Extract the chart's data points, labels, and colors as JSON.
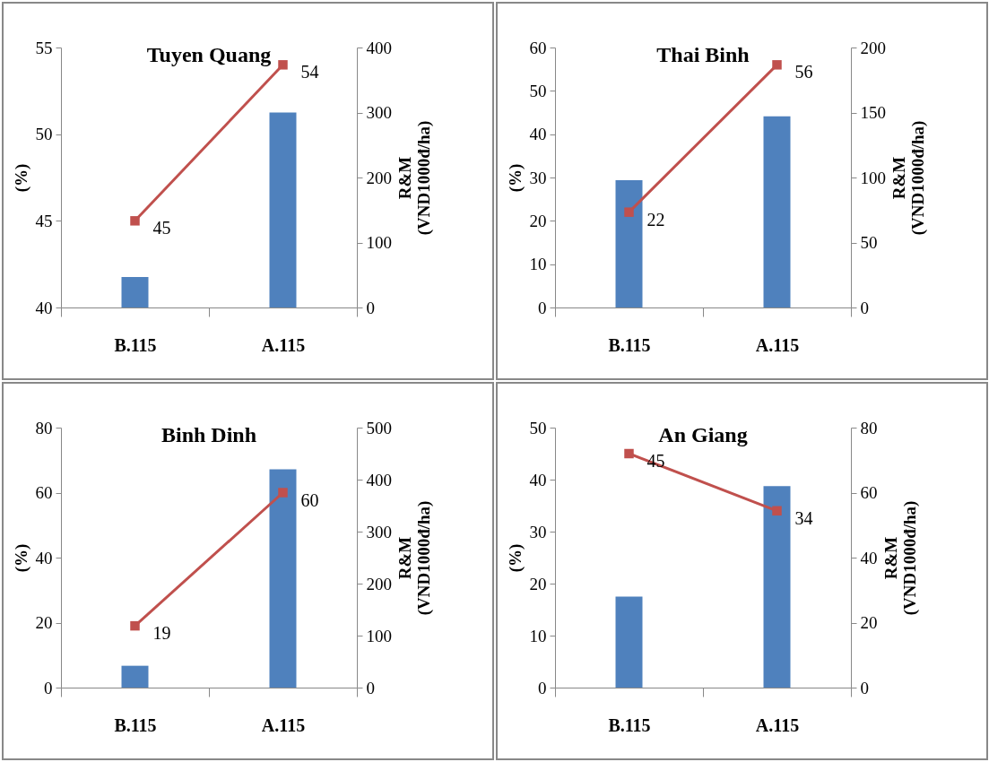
{
  "chart_data": [
    {
      "type": "bar",
      "title": "Tuyen Quang",
      "categories": [
        "B.115",
        "A.115"
      ],
      "ylabel": "(%)",
      "y2label": "R&M\n(VND1000đ/ha)",
      "ylim": [
        40,
        55
      ],
      "yticks": [
        40,
        45,
        50,
        55
      ],
      "y2lim": [
        0,
        400
      ],
      "y2ticks": [
        0,
        100,
        200,
        300,
        400
      ],
      "series": [
        {
          "axis": "y2",
          "color": "#4f81bd",
          "values": [
            47,
            300
          ]
        },
        {
          "type": "line",
          "color": "#c0504d",
          "marker": "square",
          "data_labels": true,
          "values": [
            45,
            54
          ]
        }
      ]
    },
    {
      "type": "bar",
      "title": "Thai Binh",
      "categories": [
        "B.115",
        "A.115"
      ],
      "ylabel": "(%)",
      "y2label": "R&M\n(VND1000đ/ha)",
      "ylim": [
        0,
        60
      ],
      "yticks": [
        0,
        10,
        20,
        30,
        40,
        50,
        60
      ],
      "y2lim": [
        0,
        200
      ],
      "y2ticks": [
        0,
        50,
        100,
        150,
        200
      ],
      "series": [
        {
          "axis": "y2",
          "color": "#4f81bd",
          "values": [
            98,
            147
          ]
        },
        {
          "type": "line",
          "color": "#c0504d",
          "marker": "square",
          "data_labels": true,
          "values": [
            22,
            56
          ]
        }
      ]
    },
    {
      "type": "bar",
      "title": "Binh Dinh",
      "categories": [
        "B.115",
        "A.115"
      ],
      "ylabel": "(%)",
      "y2label": "R&M\n(VND1000đ/ha)",
      "ylim": [
        0,
        80
      ],
      "yticks": [
        0,
        20,
        40,
        60,
        80
      ],
      "y2lim": [
        0,
        500
      ],
      "y2ticks": [
        0,
        100,
        200,
        300,
        400,
        500
      ],
      "series": [
        {
          "axis": "y2",
          "color": "#4f81bd",
          "values": [
            42,
            420
          ]
        },
        {
          "type": "line",
          "color": "#c0504d",
          "marker": "square",
          "data_labels": true,
          "values": [
            19,
            60
          ]
        }
      ]
    },
    {
      "type": "bar",
      "title": "An Giang",
      "categories": [
        "B.115",
        "A.115"
      ],
      "ylabel": "(%)",
      "y2label": "R&M\n(VND1000đ/ha)",
      "ylim": [
        0,
        50
      ],
      "yticks": [
        0,
        10,
        20,
        30,
        40,
        50
      ],
      "y2lim": [
        0,
        80
      ],
      "y2ticks": [
        0,
        20,
        40,
        60,
        80
      ],
      "series": [
        {
          "axis": "y2",
          "color": "#4f81bd",
          "values": [
            28,
            62
          ]
        },
        {
          "type": "line",
          "color": "#c0504d",
          "marker": "square",
          "data_labels": true,
          "values": [
            45,
            34
          ]
        }
      ]
    }
  ]
}
